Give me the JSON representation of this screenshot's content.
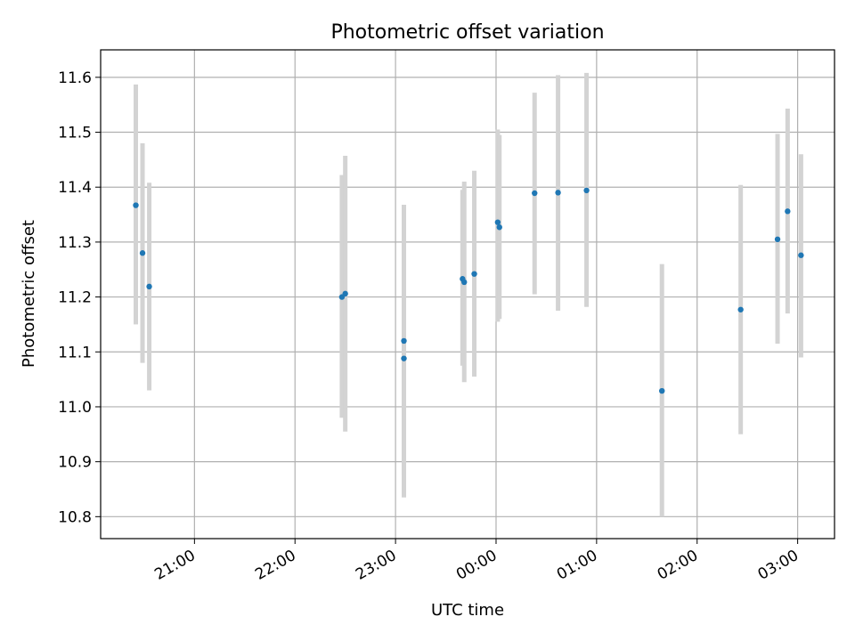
{
  "chart_data": {
    "type": "scatter",
    "title": "Photometric offset variation",
    "xlabel": "UTC time",
    "ylabel": "Photometric offset",
    "grid": true,
    "x_axis": {
      "kind": "time",
      "range": [
        "20:04",
        "03:22"
      ],
      "ticks": [
        "21:00",
        "22:00",
        "23:00",
        "00:00",
        "01:00",
        "02:00",
        "03:00"
      ],
      "tick_values": [
        "21:00",
        "22:00",
        "23:00",
        "00:00",
        "01:00",
        "02:00",
        "03:00"
      ]
    },
    "y_axis": {
      "range": [
        10.76,
        11.65
      ],
      "ticks": [
        "10.8",
        "10.9",
        "11.0",
        "11.1",
        "11.2",
        "11.3",
        "11.4",
        "11.5",
        "11.6"
      ],
      "tick_values": [
        10.8,
        10.9,
        11.0,
        11.1,
        11.2,
        11.3,
        11.4,
        11.5,
        11.6
      ]
    },
    "colors": {
      "marker": "#1f77b4",
      "errorbar": "#d3d3d3",
      "grid": "#b0b0b0"
    },
    "points": [
      {
        "time": "20:25",
        "y": 11.367,
        "ylow": 11.15,
        "yhigh": 11.587
      },
      {
        "time": "20:29",
        "y": 11.28,
        "ylow": 11.08,
        "yhigh": 11.48
      },
      {
        "time": "20:33",
        "y": 11.219,
        "ylow": 11.03,
        "yhigh": 11.408
      },
      {
        "time": "22:28",
        "y": 11.2,
        "ylow": 10.98,
        "yhigh": 11.422
      },
      {
        "time": "22:30",
        "y": 11.206,
        "ylow": 10.955,
        "yhigh": 11.457
      },
      {
        "time": "23:05",
        "y": 11.088,
        "ylow": 10.875,
        "yhigh": 11.3
      },
      {
        "time": "23:05",
        "y": 11.12,
        "ylow": 10.835,
        "yhigh": 11.368
      },
      {
        "time": "23:40",
        "y": 11.233,
        "ylow": 11.075,
        "yhigh": 11.395
      },
      {
        "time": "23:41",
        "y": 11.227,
        "ylow": 11.045,
        "yhigh": 11.41
      },
      {
        "time": "23:47",
        "y": 11.242,
        "ylow": 11.055,
        "yhigh": 11.43
      },
      {
        "time": "00:01",
        "y": 11.336,
        "ylow": 11.155,
        "yhigh": 11.505
      },
      {
        "time": "00:02",
        "y": 11.327,
        "ylow": 11.16,
        "yhigh": 11.495
      },
      {
        "time": "00:23",
        "y": 11.389,
        "ylow": 11.205,
        "yhigh": 11.572
      },
      {
        "time": "00:37",
        "y": 11.39,
        "ylow": 11.175,
        "yhigh": 11.604
      },
      {
        "time": "00:54",
        "y": 11.394,
        "ylow": 11.182,
        "yhigh": 11.608
      },
      {
        "time": "01:39",
        "y": 11.029,
        "ylow": 10.8,
        "yhigh": 11.26
      },
      {
        "time": "02:26",
        "y": 11.177,
        "ylow": 10.95,
        "yhigh": 11.404
      },
      {
        "time": "02:48",
        "y": 11.305,
        "ylow": 11.115,
        "yhigh": 11.497
      },
      {
        "time": "02:54",
        "y": 11.356,
        "ylow": 11.17,
        "yhigh": 11.543
      },
      {
        "time": "03:02",
        "y": 11.276,
        "ylow": 11.09,
        "yhigh": 11.46
      }
    ]
  }
}
